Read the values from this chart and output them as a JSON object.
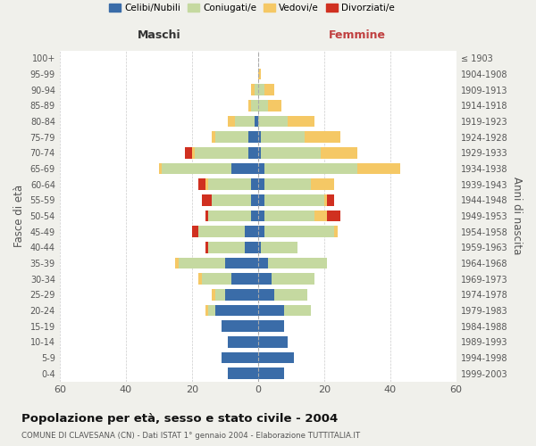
{
  "age_groups": [
    "100+",
    "95-99",
    "90-94",
    "85-89",
    "80-84",
    "75-79",
    "70-74",
    "65-69",
    "60-64",
    "55-59",
    "50-54",
    "45-49",
    "40-44",
    "35-39",
    "30-34",
    "25-29",
    "20-24",
    "15-19",
    "10-14",
    "5-9",
    "0-4"
  ],
  "birth_years": [
    "≤ 1903",
    "1904-1908",
    "1909-1913",
    "1914-1918",
    "1919-1923",
    "1924-1928",
    "1929-1933",
    "1934-1938",
    "1939-1943",
    "1944-1948",
    "1949-1953",
    "1954-1958",
    "1959-1963",
    "1964-1968",
    "1969-1973",
    "1974-1978",
    "1979-1983",
    "1984-1988",
    "1989-1993",
    "1994-1998",
    "1999-2003"
  ],
  "colors": {
    "celibe": "#3a6ca8",
    "coniugato": "#c5d9a0",
    "vedovo": "#f5c865",
    "divorziato": "#d03020"
  },
  "maschi": {
    "celibe": [
      0,
      0,
      0,
      0,
      1,
      3,
      3,
      8,
      2,
      2,
      2,
      4,
      4,
      10,
      8,
      10,
      13,
      11,
      9,
      11,
      9
    ],
    "coniugato": [
      0,
      0,
      1,
      2,
      6,
      10,
      16,
      21,
      13,
      12,
      13,
      14,
      11,
      14,
      9,
      3,
      2,
      0,
      0,
      0,
      0
    ],
    "vedovo": [
      0,
      0,
      1,
      1,
      2,
      1,
      1,
      1,
      1,
      0,
      0,
      0,
      0,
      1,
      1,
      1,
      1,
      0,
      0,
      0,
      0
    ],
    "divorziato": [
      0,
      0,
      0,
      0,
      0,
      0,
      2,
      0,
      2,
      3,
      1,
      2,
      1,
      0,
      0,
      0,
      0,
      0,
      0,
      0,
      0
    ]
  },
  "femmine": {
    "celibe": [
      0,
      0,
      0,
      0,
      0,
      1,
      1,
      2,
      2,
      2,
      2,
      2,
      1,
      3,
      4,
      5,
      8,
      8,
      9,
      11,
      8
    ],
    "coniugato": [
      0,
      0,
      2,
      3,
      9,
      13,
      18,
      28,
      14,
      18,
      15,
      21,
      11,
      18,
      13,
      10,
      8,
      0,
      0,
      0,
      0
    ],
    "vedovo": [
      0,
      1,
      3,
      4,
      8,
      11,
      11,
      13,
      7,
      1,
      4,
      1,
      0,
      0,
      0,
      0,
      0,
      0,
      0,
      0,
      0
    ],
    "divorziato": [
      0,
      0,
      0,
      0,
      0,
      0,
      0,
      0,
      0,
      2,
      4,
      0,
      0,
      0,
      0,
      0,
      0,
      0,
      0,
      0,
      0
    ]
  },
  "title": "Popolazione per età, sesso e stato civile - 2004",
  "subtitle": "COMUNE DI CLAVESANA (CN) - Dati ISTAT 1° gennaio 2004 - Elaborazione TUTTITALIA.IT",
  "xlabel_left": "Maschi",
  "xlabel_right": "Femmine",
  "ylabel_left": "Fasce di età",
  "ylabel_right": "Anni di nascita",
  "xlim": 60,
  "legend_labels": [
    "Celibi/Nubili",
    "Coniugati/e",
    "Vedovi/e",
    "Divorziati/e"
  ],
  "bg_color": "#f0f0eb",
  "plot_bg_color": "#ffffff"
}
